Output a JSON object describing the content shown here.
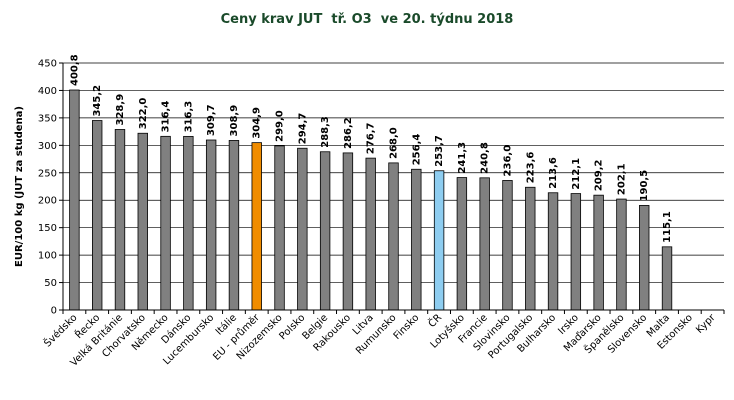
{
  "chart_data": {
    "type": "bar",
    "title": "Ceny krav JUT  tř. O3  ve 20. týdnu 2018",
    "ylabel": "EUR/100 kg (JUT za studena)",
    "xlabel": "",
    "ylim": [
      0,
      450
    ],
    "yticks": [
      0,
      50,
      100,
      150,
      200,
      250,
      300,
      350,
      400,
      450
    ],
    "grid": "horizontal",
    "categories": [
      "Švédsko",
      "Řecko",
      "Velká Británie",
      "Chorvatsko",
      "Německo",
      "Dánsko",
      "Lucembursko",
      "Itálie",
      "EU - průměr",
      "Nizozemsko",
      "Polsko",
      "Belgie",
      "Rakousko",
      "Litva",
      "Rumunsko",
      "Finsko",
      "ČR",
      "Lotyšsko",
      "Francie",
      "Slovinsko",
      "Portugalsko",
      "Bulharsko",
      "Irsko",
      "Maďarsko",
      "Španělsko",
      "Slovensko",
      "Malta",
      "Estonsko",
      "Kypr"
    ],
    "values": [
      400.8,
      345.2,
      328.9,
      322.0,
      316.4,
      316.3,
      309.7,
      308.9,
      304.9,
      299.0,
      294.7,
      288.3,
      286.2,
      276.7,
      268.0,
      256.4,
      253.7,
      241.3,
      240.8,
      236.0,
      223.6,
      213.6,
      212.1,
      209.2,
      202.1,
      190.5,
      115.1,
      null,
      null
    ],
    "value_labels": [
      "400,8",
      "345,2",
      "328,9",
      "322,0",
      "316,4",
      "316,3",
      "309,7",
      "308,9",
      "304,9",
      "299,0",
      "294,7",
      "288,3",
      "286,2",
      "276,7",
      "268,0",
      "256,4",
      "253,7",
      "241,3",
      "240,8",
      "236,0",
      "223,6",
      "213,6",
      "212,1",
      "209,2",
      "202,1",
      "190,5",
      "115,1",
      "",
      ""
    ],
    "colors": {
      "default": "#808080",
      "EU - průměr": "#f08c00",
      "ČR": "#8ecdf0"
    }
  }
}
